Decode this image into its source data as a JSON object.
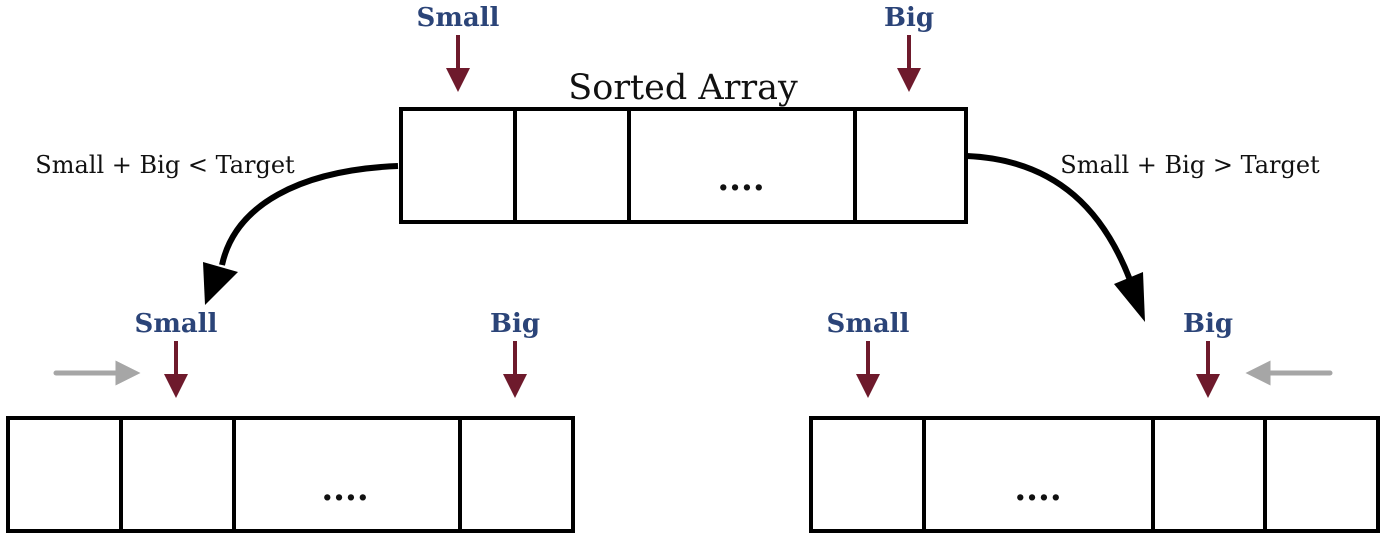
{
  "title": "Sorted Array",
  "pointers": {
    "small": "Small",
    "big": "Big"
  },
  "conditions": {
    "left": "Small + Big < Target",
    "right": "Small + Big > Target"
  },
  "ellipsis": "....",
  "colors": {
    "pointer_label": "#2b4478",
    "pointer_arrow": "#6e1a2c",
    "move_arrow": "#a6a6a6",
    "outline": "#000000"
  }
}
